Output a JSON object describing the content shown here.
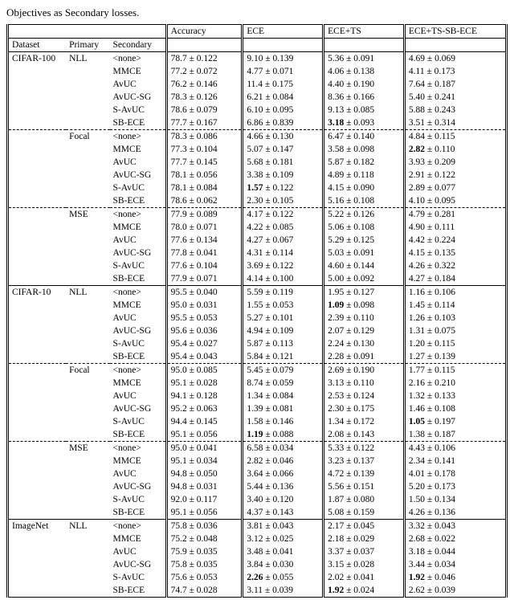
{
  "caption": "Objectives as Secondary losses.",
  "headers": {
    "dataset": "Dataset",
    "primary": "Primary",
    "secondary": "Secondary",
    "accuracy": "Accuracy",
    "ece": "ECE",
    "ecets": "ECE+TS",
    "ecetssb": "ECE+TS-SB-ECE"
  },
  "blocks": [
    {
      "dataset": "CIFAR-100",
      "groups": [
        {
          "primary": "NLL",
          "rows": [
            {
              "sec": "<none>",
              "acc": "78.7 ± 0.122",
              "ece": "9.10 ± 0.139",
              "ecets": "5.36 ± 0.091",
              "ecetssb": "4.69 ± 0.069"
            },
            {
              "sec": "MMCE",
              "acc": "77.2 ± 0.072",
              "ece": "4.77 ± 0.071",
              "ecets": "4.06 ± 0.138",
              "ecetssb": "4.11 ± 0.173"
            },
            {
              "sec": "AvUC",
              "acc": "76.2 ± 0.146",
              "ece": "11.4 ± 0.175",
              "ecets": "4.40 ± 0.190",
              "ecetssb": "7.64 ± 0.187"
            },
            {
              "sec": "AvUC-SG",
              "acc": "78.3 ± 0.126",
              "ece": "6.21 ± 0.084",
              "ecets": "8.36 ± 0.166",
              "ecetssb": "5.40 ± 0.241"
            },
            {
              "sec": "S-AvUC",
              "acc": "78.6 ± 0.079",
              "ece": "6.10 ± 0.095",
              "ecets": "9.13 ± 0.085",
              "ecetssb": "5.88 ± 0.243"
            },
            {
              "sec": "SB-ECE",
              "acc": "77.7 ± 0.167",
              "ece": "6.86 ± 0.839",
              "ecets": "3.18 ± 0.093",
              "ecets_bold": true,
              "ecetssb": "3.51 ± 0.314"
            }
          ]
        },
        {
          "primary": "Focal",
          "rows": [
            {
              "sec": "<none>",
              "acc": "78.3 ± 0.086",
              "ece": "4.66 ± 0.130",
              "ecets": "6.47 ± 0.140",
              "ecetssb": "4.84 ± 0.115"
            },
            {
              "sec": "MMCE",
              "acc": "77.3 ± 0.104",
              "ece": "5.07 ± 0.147",
              "ecets": "3.58 ± 0.098",
              "ecetssb": "2.82 ± 0.110",
              "ecetssb_bold": true
            },
            {
              "sec": "AvUC",
              "acc": "77.7 ± 0.145",
              "ece": "5.68 ± 0.181",
              "ecets": "5.87 ± 0.182",
              "ecetssb": "3.93 ± 0.209"
            },
            {
              "sec": "AvUC-SG",
              "acc": "78.1 ± 0.056",
              "ece": "3.38 ± 0.109",
              "ecets": "4.89 ± 0.118",
              "ecetssb": "2.91 ± 0.122"
            },
            {
              "sec": "S-AvUC",
              "acc": "78.1 ± 0.084",
              "ece": "1.57 ± 0.122",
              "ece_bold": true,
              "ecets": "4.15 ± 0.090",
              "ecetssb": "2.89 ± 0.077"
            },
            {
              "sec": "SB-ECE",
              "acc": "78.6 ± 0.062",
              "ece": "2.30 ± 0.105",
              "ecets": "5.16 ± 0.108",
              "ecetssb": "4.10 ± 0.095"
            }
          ]
        },
        {
          "primary": "MSE",
          "rows": [
            {
              "sec": "<none>",
              "acc": "77.9 ± 0.089",
              "ece": "4.17 ± 0.122",
              "ecets": "5.22 ± 0.126",
              "ecetssb": "4.79 ± 0.281"
            },
            {
              "sec": "MMCE",
              "acc": "78.0 ± 0.071",
              "ece": "4.22 ± 0.085",
              "ecets": "5.06 ± 0.108",
              "ecetssb": "4.90 ± 0.111"
            },
            {
              "sec": "AvUC",
              "acc": "77.6 ± 0.134",
              "ece": "4.27 ± 0.067",
              "ecets": "5.29 ± 0.125",
              "ecetssb": "4.42 ± 0.224"
            },
            {
              "sec": "AvUC-SG",
              "acc": "77.8 ± 0.041",
              "ece": "4.31 ± 0.114",
              "ecets": "5.03 ± 0.091",
              "ecetssb": "4.15 ± 0.135"
            },
            {
              "sec": "S-AvUC",
              "acc": "77.6 ± 0.104",
              "ece": "3.69 ± 0.122",
              "ecets": "4.60 ± 0.144",
              "ecetssb": "4.26 ± 0.322"
            },
            {
              "sec": "SB-ECE",
              "acc": "77.9 ± 0.071",
              "ece": "4.14 ± 0.100",
              "ecets": "5.00 ± 0.092",
              "ecetssb": "4.27 ± 0.184"
            }
          ]
        }
      ]
    },
    {
      "dataset": "CIFAR-10",
      "groups": [
        {
          "primary": "NLL",
          "rows": [
            {
              "sec": "<none>",
              "acc": "95.5 ± 0.040",
              "ece": "5.59 ± 0.119",
              "ecets": "1.95 ± 0.127",
              "ecetssb": "1.16 ± 0.106"
            },
            {
              "sec": "MMCE",
              "acc": "95.0 ± 0.031",
              "ece": "1.55 ± 0.053",
              "ecets": "1.09 ± 0.098",
              "ecets_bold": true,
              "ecetssb": "1.45 ± 0.114"
            },
            {
              "sec": "AvUC",
              "acc": "95.5 ± 0.053",
              "ece": "5.27 ± 0.101",
              "ecets": "2.39 ± 0.110",
              "ecetssb": "1.26 ± 0.103"
            },
            {
              "sec": "AvUC-SG",
              "acc": "95.6 ± 0.036",
              "ece": "4.94 ± 0.109",
              "ecets": "2.07 ± 0.129",
              "ecetssb": "1.31 ± 0.075"
            },
            {
              "sec": "S-AvUC",
              "acc": "95.4 ± 0.027",
              "ece": "5.87 ± 0.113",
              "ecets": "2.24 ± 0.130",
              "ecetssb": "1.20 ± 0.115"
            },
            {
              "sec": "SB-ECE",
              "acc": "95.4 ± 0.043",
              "ece": "5.84 ± 0.121",
              "ecets": "2.28 ± 0.091",
              "ecetssb": "1.27 ± 0.139"
            }
          ]
        },
        {
          "primary": "Focal",
          "rows": [
            {
              "sec": "<none>",
              "acc": "95.0 ± 0.085",
              "ece": "5.45 ± 0.079",
              "ecets": "2.69 ± 0.190",
              "ecetssb": "1.77 ± 0.115"
            },
            {
              "sec": "MMCE",
              "acc": "95.1 ± 0.028",
              "ece": "8.74 ± 0.059",
              "ecets": "3.13 ± 0.110",
              "ecetssb": "2.16 ± 0.210"
            },
            {
              "sec": "AvUC",
              "acc": "94.1 ± 0.128",
              "ece": "1.34 ± 0.084",
              "ecets": "2.53 ± 0.124",
              "ecetssb": "1.32 ± 0.133"
            },
            {
              "sec": "AvUC-SG",
              "acc": "95.2 ± 0.063",
              "ece": "1.39 ± 0.081",
              "ecets": "2.30 ± 0.175",
              "ecetssb": "1.46 ± 0.108"
            },
            {
              "sec": "S-AvUC",
              "acc": "94.4 ± 0.145",
              "ece": "1.58 ± 0.146",
              "ecets": "1.34 ± 0.172",
              "ecetssb": "1.05 ± 0.197",
              "ecetssb_bold": true
            },
            {
              "sec": "SB-ECE",
              "acc": "95.1 ± 0.056",
              "ece": "1.19 ± 0.088",
              "ece_bold": true,
              "ecets": "2.08 ± 0.143",
              "ecetssb": "1.38 ± 0.187"
            }
          ]
        },
        {
          "primary": "MSE",
          "rows": [
            {
              "sec": "<none>",
              "acc": "95.0 ± 0.041",
              "ece": "6.58 ± 0.034",
              "ecets": "5.33 ± 0.122",
              "ecetssb": "4.43 ± 0.106"
            },
            {
              "sec": "MMCE",
              "acc": "95.1 ± 0.034",
              "ece": "2.82 ± 0.046",
              "ecets": "3.23 ± 0.137",
              "ecetssb": "2.34 ± 0.141"
            },
            {
              "sec": "AvUC",
              "acc": "94.8 ± 0.050",
              "ece": "3.64 ± 0.066",
              "ecets": "4.72 ± 0.139",
              "ecetssb": "4.01 ± 0.178"
            },
            {
              "sec": "AvUC-SG",
              "acc": "94.8 ± 0.031",
              "ece": "5.44 ± 0.136",
              "ecets": "5.56 ± 0.151",
              "ecetssb": "5.20 ± 0.173"
            },
            {
              "sec": "S-AvUC",
              "acc": "92.0 ± 0.117",
              "ece": "3.40 ± 0.120",
              "ecets": "1.87 ± 0.080",
              "ecetssb": "1.50 ± 0.134"
            },
            {
              "sec": "SB-ECE",
              "acc": "95.1 ± 0.056",
              "ece": "4.37 ± 0.143",
              "ecets": "5.08 ± 0.159",
              "ecetssb": "4.26 ± 0.136"
            }
          ]
        }
      ]
    },
    {
      "dataset": "ImageNet",
      "groups": [
        {
          "primary": "NLL",
          "rows": [
            {
              "sec": "<none>",
              "acc": "75.8 ± 0.036",
              "ece": "3.81 ± 0.043",
              "ecets": "2.17 ± 0.045",
              "ecetssb": "3.32 ± 0.043"
            },
            {
              "sec": "MMCE",
              "acc": "75.2 ± 0.048",
              "ece": "3.12 ± 0.025",
              "ecets": "2.18 ± 0.029",
              "ecetssb": "2.68 ± 0.022"
            },
            {
              "sec": "AvUC",
              "acc": "75.9 ± 0.035",
              "ece": "3.48 ± 0.041",
              "ecets": "3.37 ± 0.037",
              "ecetssb": "3.18 ± 0.044"
            },
            {
              "sec": "AvUC-SG",
              "acc": "75.8 ± 0.035",
              "ece": "3.84 ± 0.030",
              "ecets": "3.15 ± 0.028",
              "ecetssb": "3.44 ± 0.034"
            },
            {
              "sec": "S-AvUC",
              "acc": "75.6 ± 0.053",
              "ece": "2.26 ± 0.055",
              "ece_bold": true,
              "ecets": "2.02 ± 0.041",
              "ecetssb": "1.92 ± 0.046",
              "ecetssb_bold": true
            },
            {
              "sec": "SB-ECE",
              "acc": "74.7 ± 0.028",
              "ece": "3.11 ± 0.039",
              "ecets": "1.92 ± 0.024",
              "ecets_bold": true,
              "ecetssb": "2.62 ± 0.039"
            }
          ]
        }
      ]
    }
  ]
}
